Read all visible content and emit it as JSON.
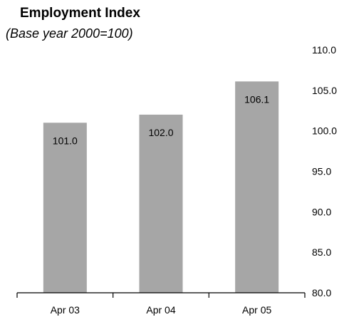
{
  "chart_data": {
    "type": "bar",
    "title": "Employment Index",
    "subtitle": "(Base year 2000=100)",
    "categories": [
      "Apr 03",
      "Apr 04",
      "Apr 05"
    ],
    "values": [
      101.0,
      102.0,
      106.1
    ],
    "value_labels": [
      "101.0",
      "102.0",
      "106.1"
    ],
    "xlabel": "",
    "ylabel": "",
    "ylim": [
      80.0,
      110.0
    ],
    "y_ticks": [
      80.0,
      85.0,
      90.0,
      95.0,
      100.0,
      105.0,
      110.0
    ],
    "y_tick_labels": [
      "80.0",
      "85.0",
      "90.0",
      "95.0",
      "100.0",
      "105.0",
      "110.0"
    ],
    "y_axis_side": "right",
    "grid": false,
    "legend": "none",
    "bar_color": "#a6a6a6"
  }
}
